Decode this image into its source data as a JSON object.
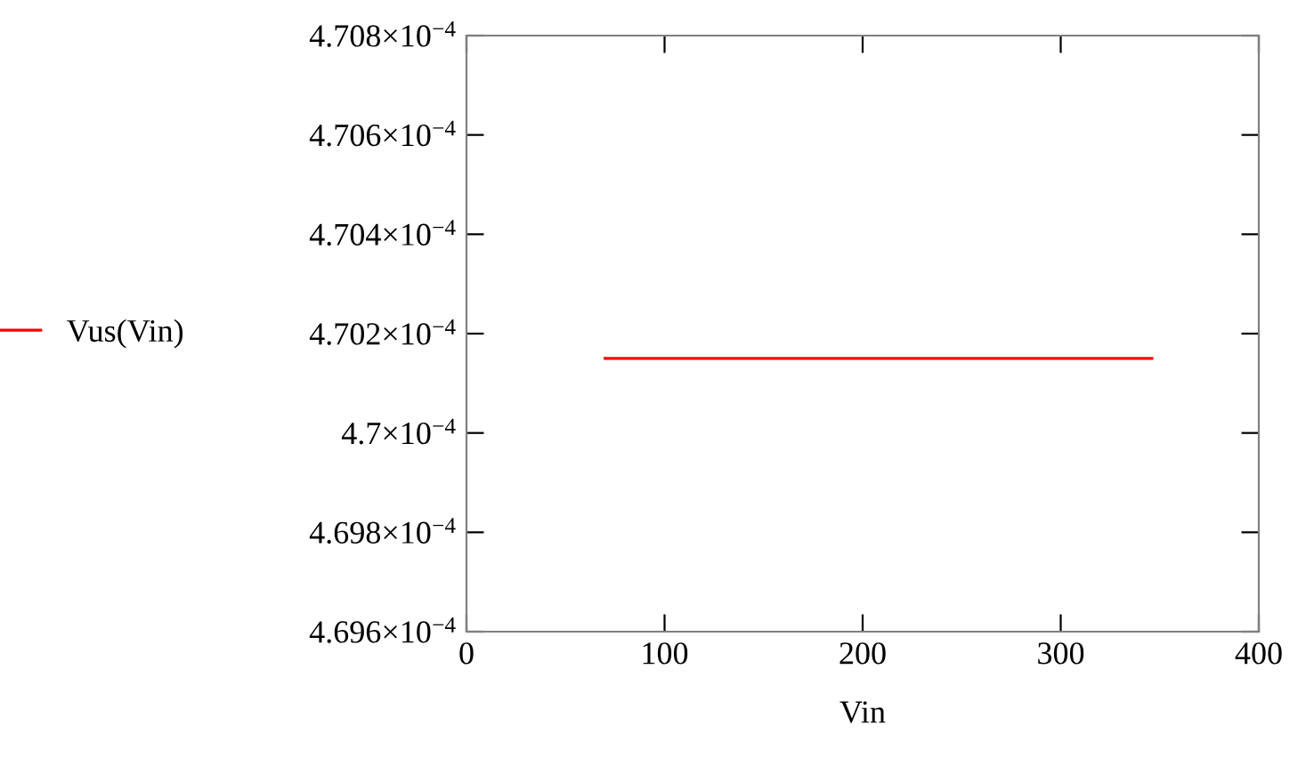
{
  "chart_data": {
    "type": "line",
    "xlabel": "Vin",
    "series": [
      {
        "name": "Vus(Vin)",
        "color": "#ff0000",
        "x": [
          70,
          346
        ],
        "values": [
          0.00047015,
          0.00047015
        ]
      }
    ],
    "xlim": [
      0,
      400
    ],
    "xticks": [
      0,
      100,
      200,
      300,
      400
    ],
    "ylim": [
      0.0004696,
      0.0004708
    ],
    "yticks": [
      {
        "value": 0.0004696,
        "label": "4.696×10$^{−4}$"
      },
      {
        "value": 0.0004698,
        "label": "4.698×10$^{−4}$"
      },
      {
        "value": 0.00047,
        "label": "4.7×10$^{−4}$"
      },
      {
        "value": 0.0004702,
        "label": "4.702×10$^{−4}$"
      },
      {
        "value": 0.0004704,
        "label": "4.704×10$^{−4}$"
      },
      {
        "value": 0.0004706,
        "label": "4.706×10$^{−4}$"
      },
      {
        "value": 0.0004708,
        "label": "4.708×10$^{−4}$"
      }
    ],
    "grid": false,
    "legend": "left",
    "marker": "none",
    "line_style": "solid"
  }
}
